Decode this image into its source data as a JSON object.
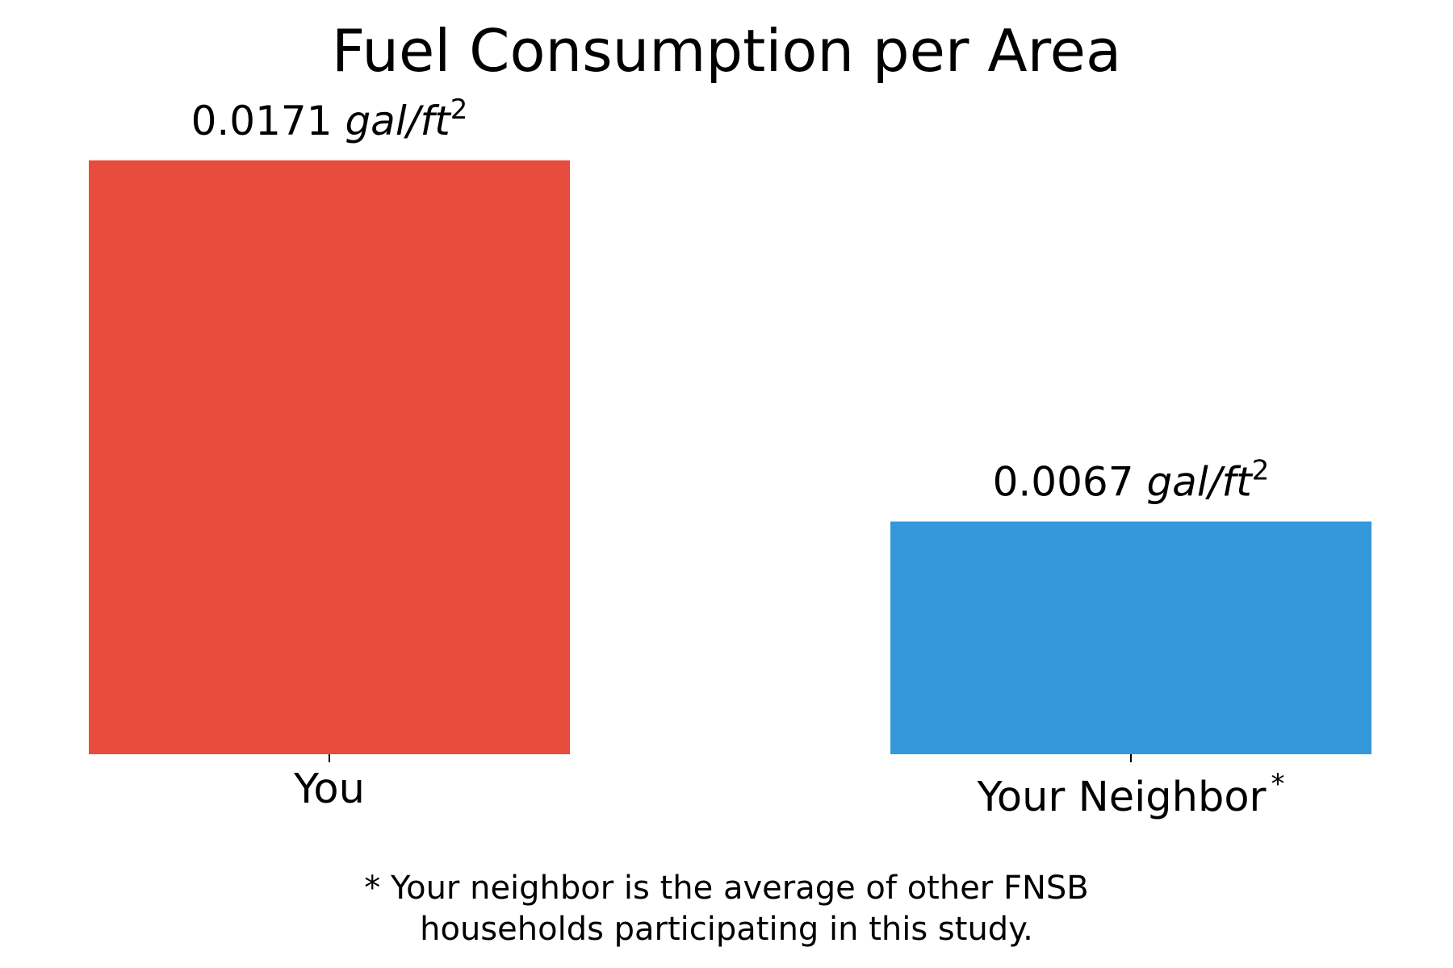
{
  "chart_data": {
    "type": "bar",
    "title": "Fuel Consumption per Area",
    "categories": [
      "You",
      "Your Neighbor"
    ],
    "category_superscripts": [
      "",
      "*"
    ],
    "values": [
      0.0171,
      0.0067
    ],
    "value_labels": [
      "0.0171",
      "0.0067"
    ],
    "value_unit": "gal/ft",
    "value_unit_superscript": "2",
    "colors": [
      "#e74c3c",
      "#3498db"
    ],
    "ylim": [
      0,
      0.018
    ],
    "grid": false,
    "legend": "none",
    "xlabel": "",
    "ylabel": "",
    "footnote": [
      "* Your neighbor is the average of other FNSB",
      "households participating in this study."
    ]
  }
}
